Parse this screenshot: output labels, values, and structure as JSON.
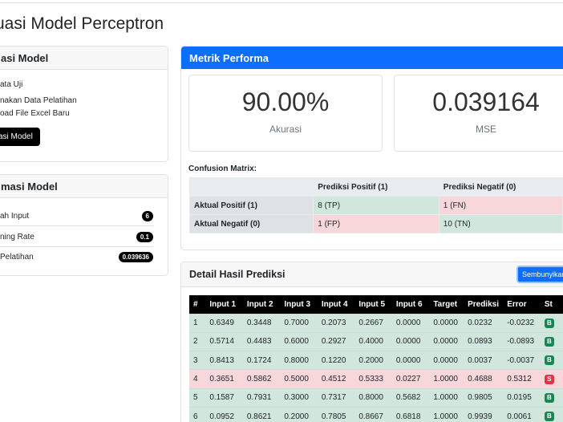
{
  "page_title": "uasi Model Perceptron",
  "eval_card": {
    "title": "asi Model",
    "options": [
      "ata Uji",
      "nakan Data Pelatihan",
      "oad File Excel Baru"
    ],
    "button_label": "asi Model"
  },
  "info_card": {
    "title": "masi Model",
    "rows": [
      {
        "label": "ah Input",
        "value": "6"
      },
      {
        "label": "ning Rate",
        "value": "0.1"
      },
      {
        "label": "Pelatihan",
        "value": "0.039636"
      }
    ]
  },
  "metrics": {
    "title": "Metrik Performa",
    "accuracy": {
      "value": "90.00%",
      "label": "Akurasi"
    },
    "mse": {
      "value": "0.039164",
      "label": "MSE"
    }
  },
  "confusion": {
    "label": "Confusion Matrix:",
    "col_headers": [
      "",
      "Prediksi Positif (1)",
      "Prediksi Negatif (0)"
    ],
    "rows": [
      {
        "header": "Aktual Positif (1)",
        "cells": [
          "8 (TP)",
          "1 (FN)"
        ]
      },
      {
        "header": "Aktual Negatif (0)",
        "cells": [
          "1 (FP)",
          "10 (TN)"
        ]
      }
    ]
  },
  "detail": {
    "title": "Detail Hasil Prediksi",
    "hide_button": "Sembunyikan",
    "columns": [
      "#",
      "Input 1",
      "Input 2",
      "Input 3",
      "Input 4",
      "Input 5",
      "Input 6",
      "Target",
      "Prediksi",
      "Error",
      "St"
    ],
    "rows": [
      {
        "cells": [
          "1",
          "0.6349",
          "0.3448",
          "0.7000",
          "0.2073",
          "0.2667",
          "0.0000",
          "0.0000",
          "0.0232",
          "-0.0232"
        ],
        "status": "B",
        "correct": true
      },
      {
        "cells": [
          "2",
          "0.5714",
          "0.4483",
          "0.6000",
          "0.2927",
          "0.4000",
          "0.0000",
          "0.0000",
          "0.0893",
          "-0.0893"
        ],
        "status": "B",
        "correct": true
      },
      {
        "cells": [
          "3",
          "0.8413",
          "0.1724",
          "0.8000",
          "0.1220",
          "0.2000",
          "0.0000",
          "0.0000",
          "0.0037",
          "-0.0037"
        ],
        "status": "B",
        "correct": true
      },
      {
        "cells": [
          "4",
          "0.3651",
          "0.5862",
          "0.5000",
          "0.4512",
          "0.5333",
          "0.0227",
          "1.0000",
          "0.4688",
          "0.5312"
        ],
        "status": "S",
        "correct": false
      },
      {
        "cells": [
          "5",
          "0.1587",
          "0.7931",
          "0.3000",
          "0.7317",
          "0.8000",
          "0.5682",
          "1.0000",
          "0.9805",
          "0.0195"
        ],
        "status": "B",
        "correct": true
      },
      {
        "cells": [
          "6",
          "0.0952",
          "0.8621",
          "0.2000",
          "0.7805",
          "0.8667",
          "0.6818",
          "1.0000",
          "0.9939",
          "0.0061"
        ],
        "status": "B",
        "correct": true
      }
    ]
  },
  "colors": {
    "primary": "#0d6efd",
    "correct_row": "#d1e7dd",
    "wrong_row": "#f8d7da",
    "badge_success": "#198754",
    "badge_danger": "#dc3545"
  }
}
